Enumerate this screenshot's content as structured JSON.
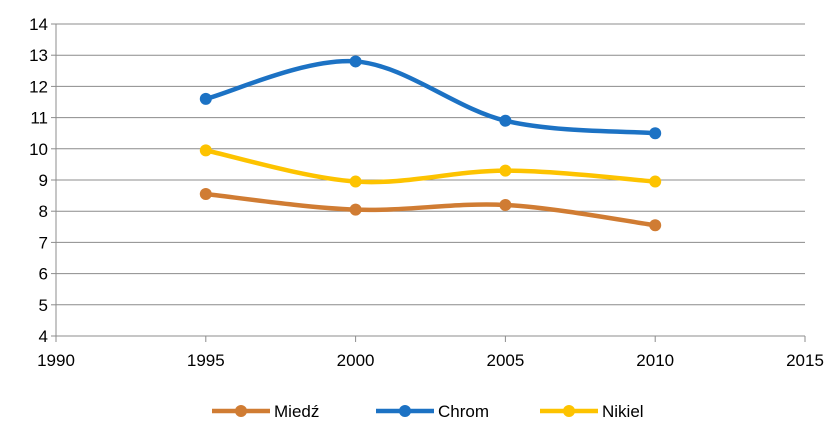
{
  "chart_data": {
    "type": "line",
    "smooth": true,
    "x": [
      1995,
      2000,
      2005,
      2010
    ],
    "xlim": [
      1990,
      2015
    ],
    "ylim": [
      4,
      14
    ],
    "xticks": [
      "1990",
      "1995",
      "2000",
      "2005",
      "2010",
      "2015"
    ],
    "yticks": [
      "4",
      "5",
      "6",
      "7",
      "8",
      "9",
      "10",
      "11",
      "12",
      "13",
      "14"
    ],
    "grid": "horizontal",
    "legend_position": "bottom",
    "series": [
      {
        "name": "Miedź",
        "color": "#D07C33",
        "values": [
          8.55,
          8.05,
          8.2,
          7.55
        ]
      },
      {
        "name": "Chrom",
        "color": "#1C72C4",
        "values": [
          11.6,
          12.8,
          10.9,
          10.5
        ]
      },
      {
        "name": "Nikiel",
        "color": "#FDC300",
        "values": [
          9.95,
          8.95,
          9.3,
          8.95
        ]
      }
    ]
  }
}
